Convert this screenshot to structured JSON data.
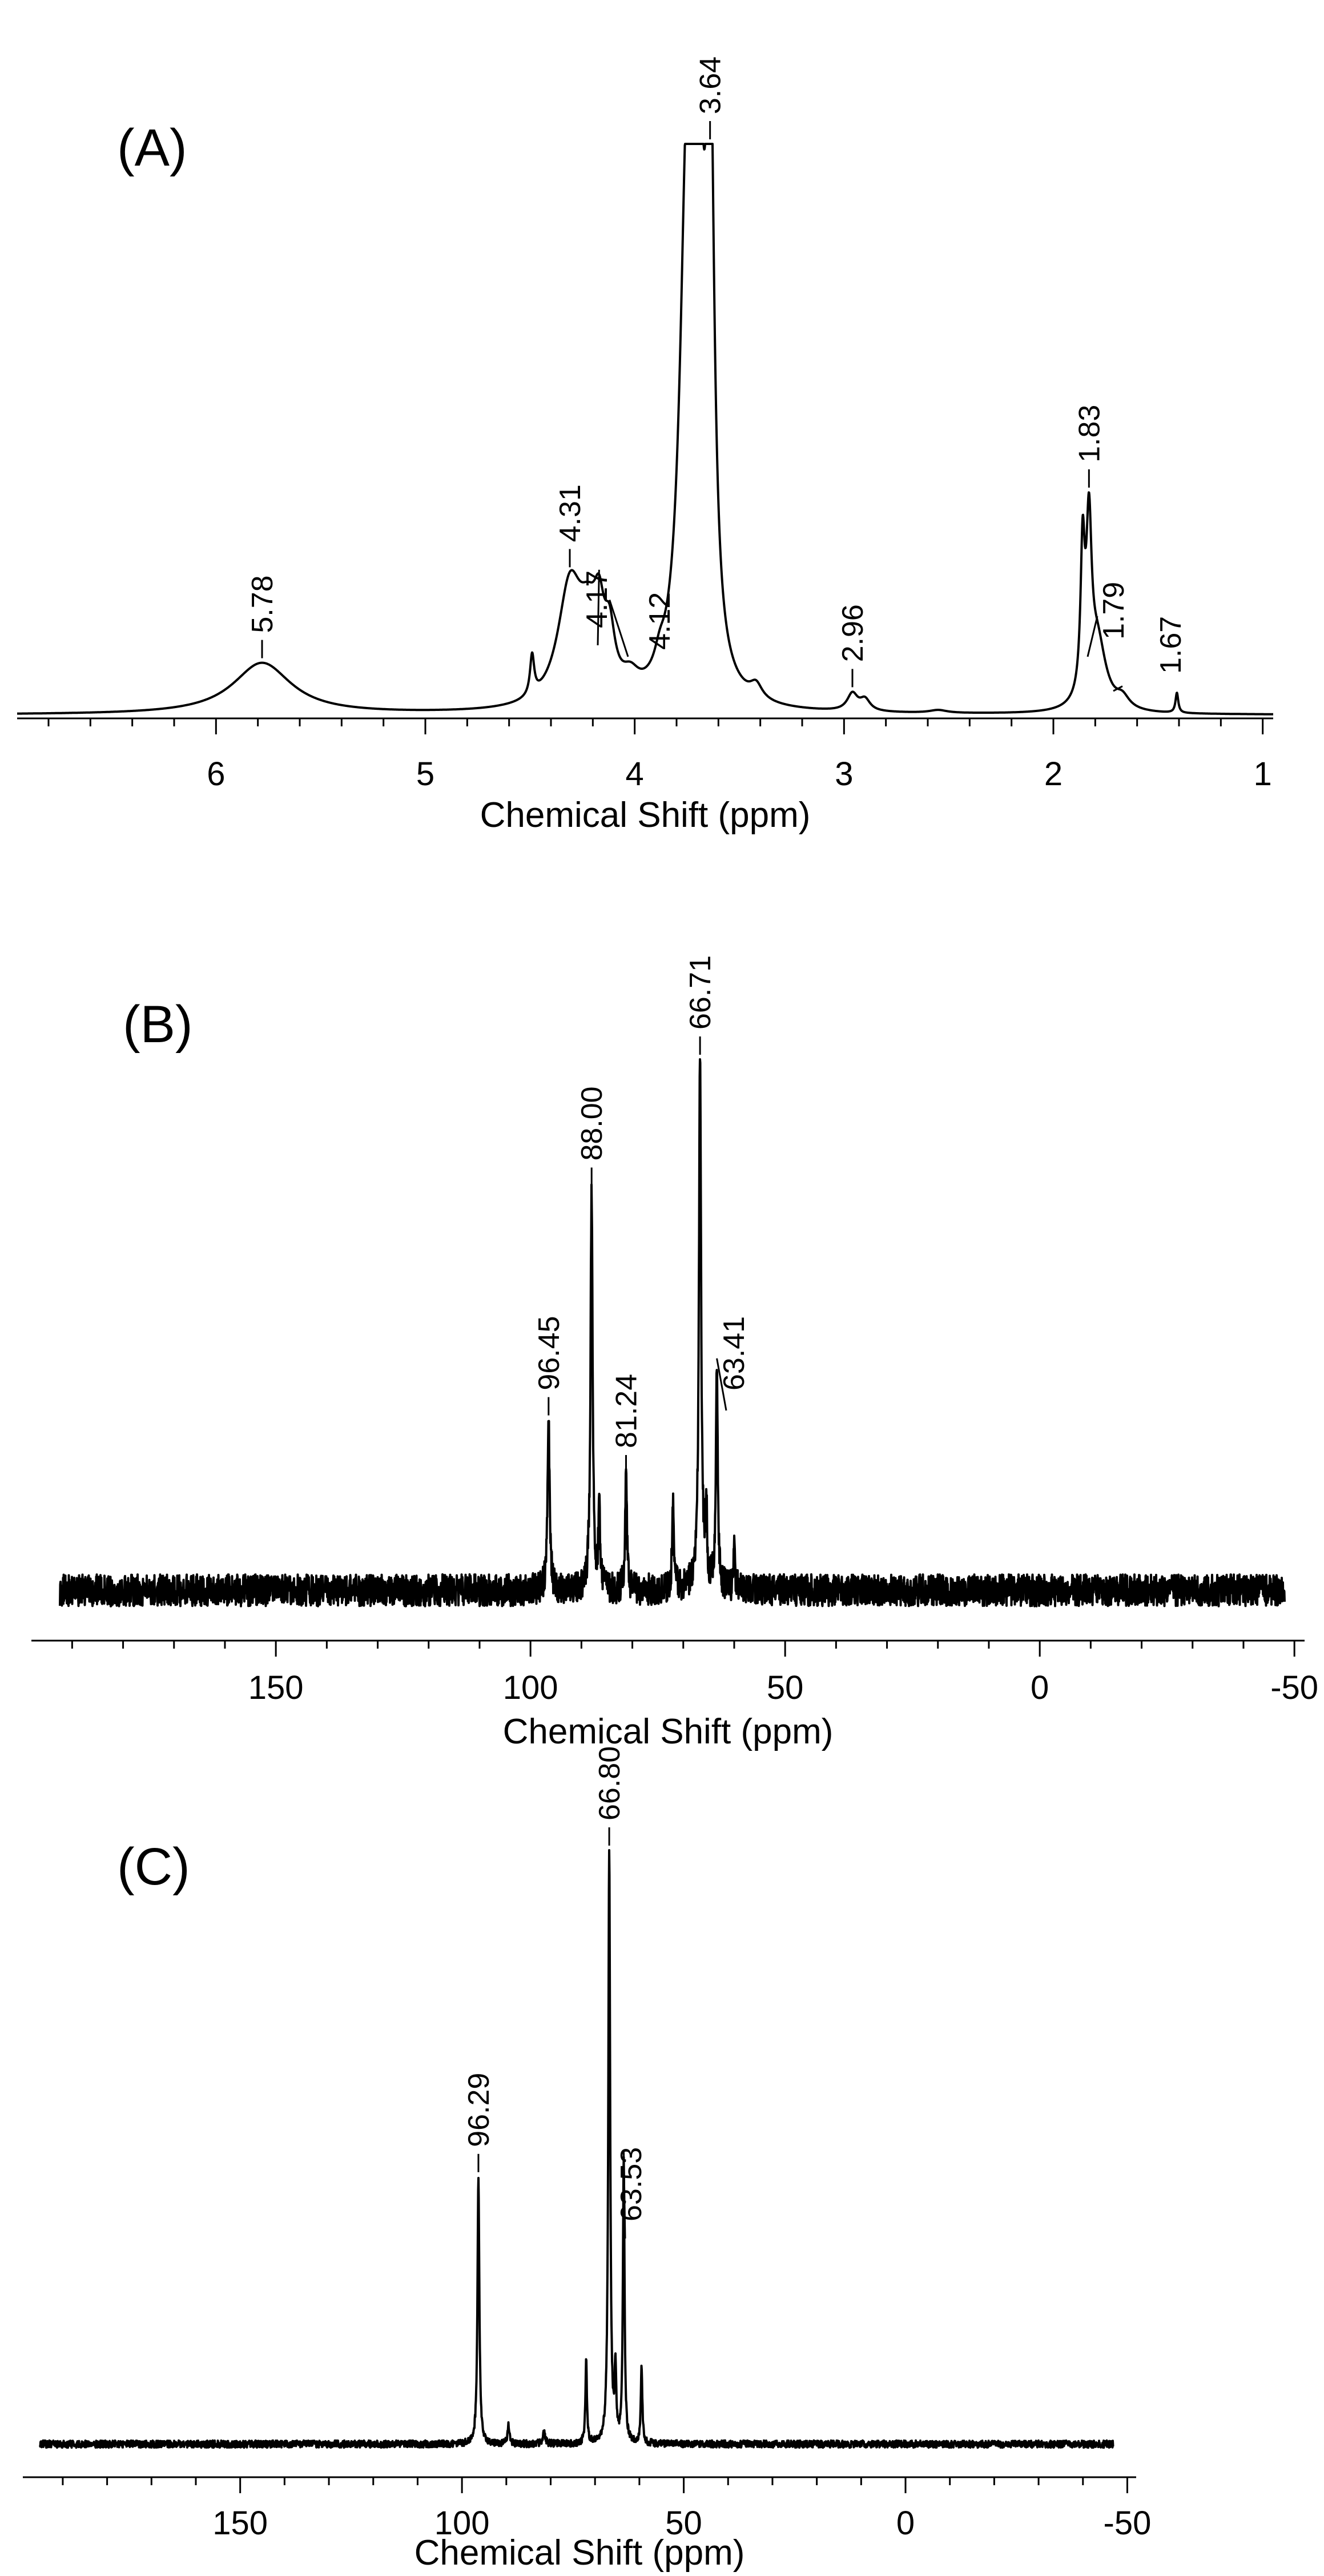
{
  "chart_data": [
    {
      "type": "line",
      "panel_label": "(A)",
      "xlabel": "Chemical Shift (ppm)",
      "ylabel": "",
      "x_reversed": true,
      "xlim": [
        6.95,
        0.95
      ],
      "xticks": [
        6,
        5,
        4,
        3,
        2,
        1
      ],
      "tick_labels": [
        "6",
        "5",
        "4",
        "3",
        "2",
        "1"
      ],
      "grid": false,
      "noise": 0.0,
      "baseline_drift": [],
      "peaks": [
        {
          "x": 5.78,
          "h": 0.09,
          "w": 0.17,
          "label": "5.78"
        },
        {
          "x": 4.49,
          "h": 0.07,
          "w": 0.012
        },
        {
          "x": 4.31,
          "h": 0.2,
          "w": 0.07,
          "label": "4.31"
        },
        {
          "x": 4.22,
          "h": 0.11,
          "w": 0.06
        },
        {
          "x": 4.17,
          "h": 0.1,
          "w": 0.03,
          "label": "4.17"
        },
        {
          "x": 4.12,
          "h": 0.09,
          "w": 0.03,
          "label": "4.12"
        },
        {
          "x": 4.02,
          "h": 0.03,
          "w": 0.05
        },
        {
          "x": 3.88,
          "h": 0.03,
          "w": 0.03
        },
        {
          "x": 3.75,
          "h": 0.82,
          "w": 0.04
        },
        {
          "x": 3.7,
          "h": 0.95,
          "w": 0.03
        },
        {
          "x": 3.64,
          "h": 1.0,
          "w": 0.022,
          "label": "3.64"
        },
        {
          "x": 3.42,
          "h": 0.025,
          "w": 0.035
        },
        {
          "x": 2.96,
          "h": 0.03,
          "w": 0.03,
          "label": "2.96"
        },
        {
          "x": 2.9,
          "h": 0.02,
          "w": 0.03
        },
        {
          "x": 2.55,
          "h": 0.005,
          "w": 0.05
        },
        {
          "x": 1.86,
          "h": 0.25,
          "w": 0.012
        },
        {
          "x": 1.83,
          "h": 0.28,
          "w": 0.015,
          "label": "1.83"
        },
        {
          "x": 1.79,
          "h": 0.12,
          "w": 0.05,
          "label": "1.79"
        },
        {
          "x": 1.67,
          "h": 0.02,
          "w": 0.04,
          "label": "1.67"
        },
        {
          "x": 1.41,
          "h": 0.035,
          "w": 0.008
        }
      ]
    },
    {
      "type": "line",
      "panel_label": "(B)",
      "xlabel": "Chemical Shift (ppm)",
      "ylabel": "",
      "x_reversed": true,
      "xlim": [
        198,
        -52
      ],
      "xticks": [
        150,
        100,
        50,
        0,
        -50
      ],
      "tick_labels": [
        "150",
        "100",
        "50",
        "0",
        "-50"
      ],
      "grid": false,
      "noise": 0.06,
      "baseline_drift": [],
      "peaks": [
        {
          "x": 96.45,
          "h": 0.32,
          "w": 0.25,
          "label": "96.45"
        },
        {
          "x": 88.0,
          "h": 0.75,
          "w": 0.25,
          "label": "88.00"
        },
        {
          "x": 86.5,
          "h": 0.14,
          "w": 0.2
        },
        {
          "x": 81.24,
          "h": 0.21,
          "w": 0.22,
          "label": "81.24"
        },
        {
          "x": 72.0,
          "h": 0.17,
          "w": 0.2
        },
        {
          "x": 67.5,
          "h": 0.02,
          "w": 0.8
        },
        {
          "x": 66.71,
          "h": 1.0,
          "w": 0.25,
          "label": "66.71"
        },
        {
          "x": 65.5,
          "h": 0.15,
          "w": 0.2
        },
        {
          "x": 63.41,
          "h": 0.42,
          "w": 0.22,
          "label": "63.41"
        },
        {
          "x": 60.0,
          "h": 0.07,
          "w": 0.2
        }
      ]
    },
    {
      "type": "line",
      "panel_label": "(C)",
      "xlabel": "Chemical Shift (ppm)",
      "ylabel": "",
      "x_reversed": true,
      "xlim": [
        199,
        -52
      ],
      "xticks": [
        150,
        100,
        50,
        0,
        -50
      ],
      "tick_labels": [
        "150",
        "100",
        "50",
        "0",
        "-50"
      ],
      "grid": false,
      "noise": 0.012,
      "baseline_drift": [],
      "peaks": [
        {
          "x": 96.29,
          "h": 0.45,
          "w": 0.25,
          "label": "96.29"
        },
        {
          "x": 89.5,
          "h": 0.03,
          "w": 0.3
        },
        {
          "x": 81.5,
          "h": 0.02,
          "w": 0.3
        },
        {
          "x": 72.0,
          "h": 0.14,
          "w": 0.2
        },
        {
          "x": 66.8,
          "h": 1.0,
          "w": 0.25,
          "label": "66.80"
        },
        {
          "x": 65.4,
          "h": 0.12,
          "w": 0.2
        },
        {
          "x": 63.53,
          "h": 0.48,
          "w": 0.22,
          "label": "63.53"
        },
        {
          "x": 59.5,
          "h": 0.13,
          "w": 0.2
        }
      ]
    }
  ]
}
